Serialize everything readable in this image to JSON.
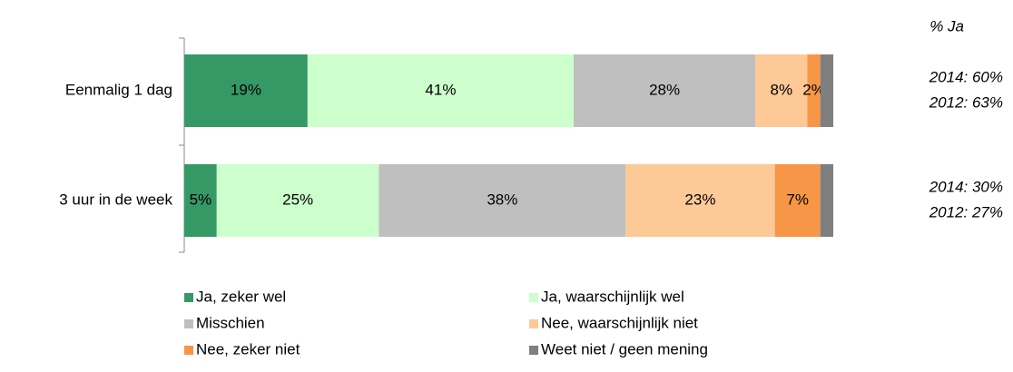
{
  "chart_data": {
    "type": "stacked_barh",
    "categories": [
      "Eenmalig 1 dag",
      "3 uur in de week"
    ],
    "xlim": [
      0,
      100
    ],
    "series": [
      {
        "name": "Ja, zeker wel",
        "color": "#359966",
        "values": [
          19,
          5
        ],
        "value_labels": [
          "19%",
          "5%"
        ]
      },
      {
        "name": "Ja, waarschijnlijk wel",
        "color": "#ccffcc",
        "values": [
          41,
          25
        ],
        "value_labels": [
          "41%",
          "25%"
        ]
      },
      {
        "name": "Misschien",
        "color": "#bfbfbf",
        "values": [
          28,
          38
        ],
        "value_labels": [
          "28%",
          "38%"
        ]
      },
      {
        "name": "Nee, waarschijnlijk niet",
        "color": "#fcc997",
        "values": [
          8,
          23
        ],
        "value_labels": [
          "8%",
          "23%"
        ]
      },
      {
        "name": "Nee, zeker niet",
        "color": "#f79646",
        "values": [
          2,
          7
        ],
        "value_labels": [
          "2%",
          "7%"
        ]
      },
      {
        "name": "Weet niet / geen mening",
        "color": "#7f7f7f",
        "values": [
          2,
          2
        ],
        "value_labels": [
          null,
          null
        ]
      }
    ],
    "annotations": {
      "header": "% Ja",
      "rows": [
        [
          "2014: 60%",
          "2012: 63%"
        ],
        [
          "2014: 30%",
          "2012: 27%"
        ]
      ]
    },
    "legend": "bottom"
  }
}
